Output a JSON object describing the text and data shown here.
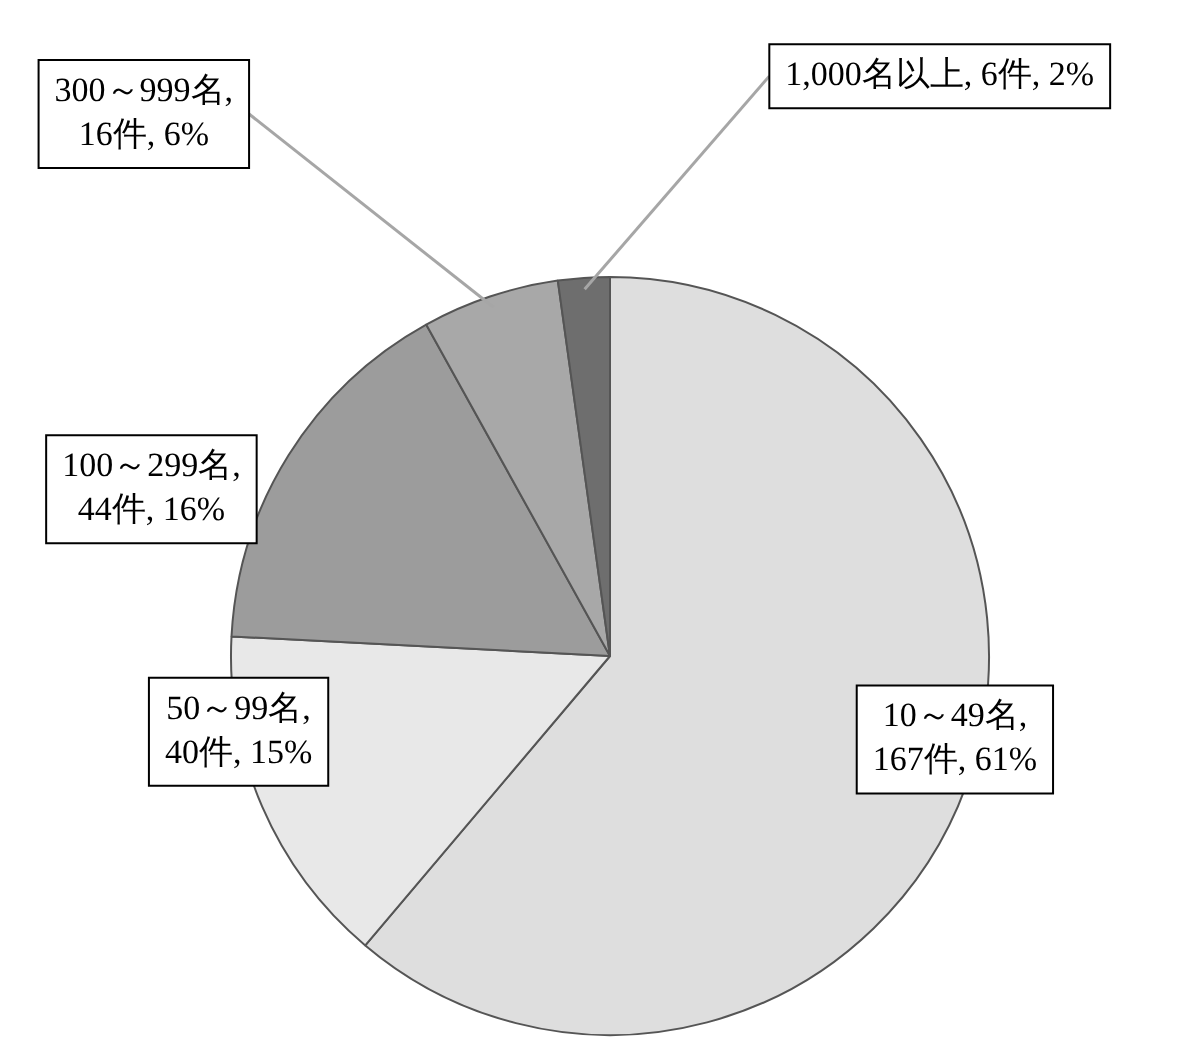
{
  "chart_data": {
    "type": "pie",
    "categories": [
      "10～49名",
      "50～99名",
      "100～299名",
      "300～999名",
      "1,000名以上"
    ],
    "values": [
      167,
      40,
      44,
      16,
      6
    ],
    "value_labels": [
      ", 167件, 61%",
      ", 40件, 15%",
      ", 44件, 16%",
      ", 16件, 6%",
      ", 6件, 2%"
    ],
    "colors": [
      "#dedede",
      "#e8e8e8",
      "#9c9c9c",
      "#a8a8a8",
      "#6e6e6e"
    ],
    "legend": false
  }
}
